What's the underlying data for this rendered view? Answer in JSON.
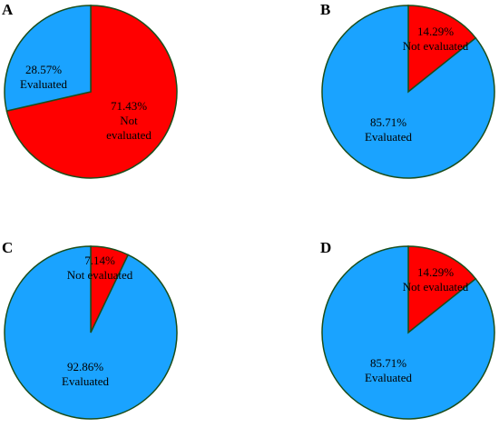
{
  "colors": {
    "evaluated": "#1aa3ff",
    "not_evaluated": "#ff0000",
    "outline": "#1a4d1a"
  },
  "chart_data": [
    {
      "panel": "A",
      "type": "pie",
      "slices": [
        {
          "name": "Not evaluated",
          "value": 71.43,
          "label_value": "71.43%",
          "label_name": "Not evaluated",
          "color": "#ff0000"
        },
        {
          "name": "Evaluated",
          "value": 28.57,
          "label_value": "28.57%",
          "label_name": "Evaluated",
          "color": "#1aa3ff"
        }
      ]
    },
    {
      "panel": "B",
      "type": "pie",
      "slices": [
        {
          "name": "Not evaluated",
          "value": 14.29,
          "label_value": "14.29%",
          "label_name": "Not evaluated",
          "color": "#ff0000"
        },
        {
          "name": "Evaluated",
          "value": 85.71,
          "label_value": "85.71%",
          "label_name": "Evaluated",
          "color": "#1aa3ff"
        }
      ]
    },
    {
      "panel": "C",
      "type": "pie",
      "slices": [
        {
          "name": "Not evaluated",
          "value": 7.14,
          "label_value": "7.14%",
          "label_name": "Not evaluated",
          "color": "#ff0000"
        },
        {
          "name": "Evaluated",
          "value": 92.86,
          "label_value": "92.86%",
          "label_name": "Evaluated",
          "color": "#1aa3ff"
        }
      ]
    },
    {
      "panel": "D",
      "type": "pie",
      "slices": [
        {
          "name": "Not evaluated",
          "value": 14.29,
          "label_value": "14.29%",
          "label_name": "Not evaluated",
          "color": "#ff0000"
        },
        {
          "name": "Evaluated",
          "value": 85.71,
          "label_value": "85.71%",
          "label_name": "Evaluated",
          "color": "#1aa3ff"
        }
      ]
    }
  ]
}
